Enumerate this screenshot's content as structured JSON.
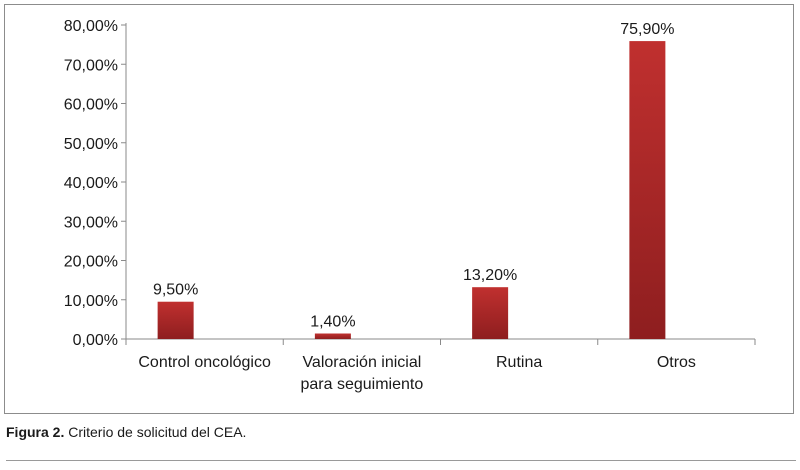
{
  "chart_data": {
    "type": "bar",
    "categories": [
      [
        "Control oncológico"
      ],
      [
        "Valoración inicial",
        "para seguimiento"
      ],
      [
        "Rutina"
      ],
      [
        "Otros"
      ]
    ],
    "values": [
      9.5,
      1.4,
      13.2,
      75.9
    ],
    "data_labels": [
      "9,50%",
      "1,40%",
      "13,20%",
      "75,90%"
    ],
    "ylim": [
      0,
      80
    ],
    "yticks": [
      0,
      10,
      20,
      30,
      40,
      50,
      60,
      70,
      80
    ],
    "ytick_labels": [
      "0,00%",
      "10,00%",
      "20,00%",
      "30,00%",
      "40,00%",
      "50,00%",
      "60,00%",
      "70,00%",
      "80,00%"
    ],
    "title": "",
    "xlabel": "",
    "ylabel": "",
    "grid": false,
    "bar_color": "#c0302f",
    "bar_color_dark": "#8e1e1f"
  },
  "caption": {
    "label": "Figura 2.",
    "text": " Criterio de solicitud del CEA."
  }
}
